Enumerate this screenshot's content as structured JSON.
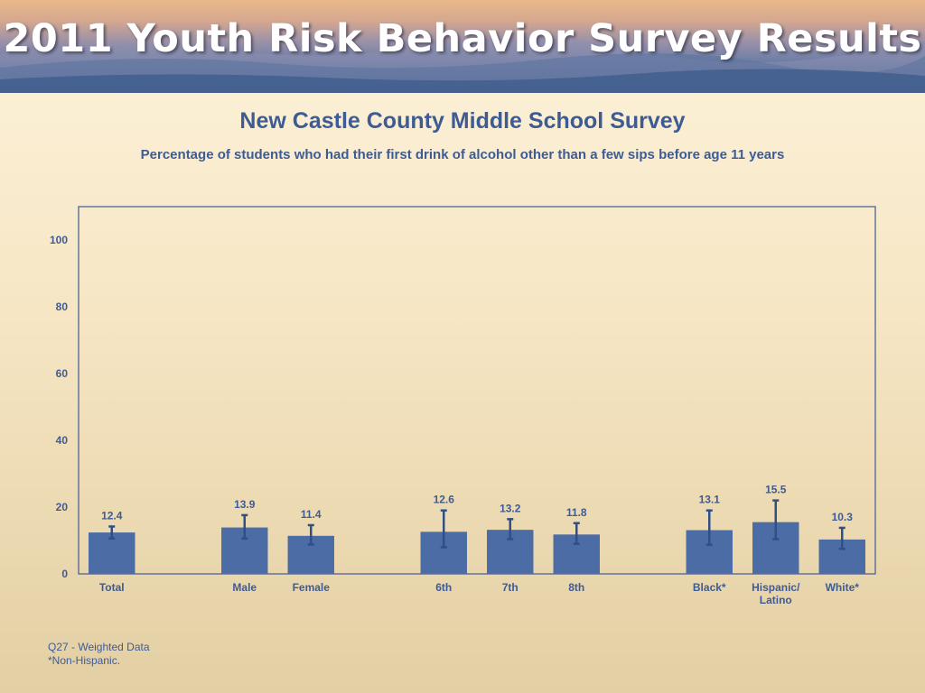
{
  "banner": {
    "title": "2011 Youth Risk Behavior Survey Results"
  },
  "chart_data": {
    "type": "bar",
    "title": "New Castle County Middle School Survey",
    "subtitle": "Percentage of students who had their first drink of alcohol other than a few sips before age 11 years",
    "xlabel": "",
    "ylabel": "",
    "ylim": [
      0,
      110
    ],
    "yticks": [
      0,
      20,
      40,
      60,
      80,
      100
    ],
    "grid": false,
    "legend": "none",
    "categories": [
      "Total",
      "Male",
      "Female",
      "6th",
      "7th",
      "8th",
      "Black*",
      "Hispanic/\nLatino",
      "White*"
    ],
    "values": [
      12.4,
      13.9,
      11.4,
      12.6,
      13.2,
      11.8,
      13.1,
      15.5,
      10.3
    ],
    "value_labels": [
      "12.4",
      "13.9",
      "11.4",
      "12.6",
      "13.2",
      "11.8",
      "13.1",
      "15.5",
      "10.3"
    ],
    "error_low": [
      10.6,
      10.6,
      8.8,
      8.0,
      10.4,
      9.0,
      8.7,
      10.4,
      7.5
    ],
    "error_high": [
      14.2,
      17.6,
      14.6,
      19.0,
      16.4,
      15.2,
      19.0,
      22.0,
      13.8
    ],
    "groups": [
      [
        0
      ],
      [
        1,
        2
      ],
      [
        3,
        4,
        5
      ],
      [
        6,
        7,
        8
      ]
    ],
    "colors": {
      "bar": "#4c6ca5",
      "error": "#2f4f86",
      "axis": "#3e5b94",
      "text": "#3e5b94"
    }
  },
  "footnotes": [
    "Q27 - Weighted Data",
    "*Non-Hispanic."
  ]
}
